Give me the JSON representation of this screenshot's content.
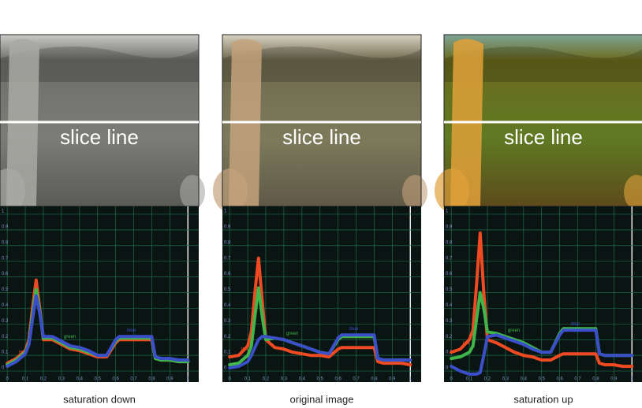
{
  "chart_data": [
    {
      "type": "line",
      "title": "saturation down",
      "annotation": "slice line",
      "grid": true,
      "xlim": [
        -0.04,
        1.06
      ],
      "ylim": [
        -0.07,
        1.05
      ],
      "xticks": [
        0,
        0.1,
        0.2,
        0.3,
        0.4,
        0.5,
        0.6,
        0.7,
        0.8,
        0.9,
        1
      ],
      "yticks": [
        0,
        0.1,
        0.2,
        0.3,
        0.4,
        0.5,
        0.6,
        0.7,
        0.8,
        0.9,
        1
      ],
      "x": [
        0,
        0.05,
        0.1,
        0.12,
        0.14,
        0.16,
        0.18,
        0.2,
        0.25,
        0.3,
        0.35,
        0.4,
        0.45,
        0.5,
        0.55,
        0.6,
        0.62,
        0.65,
        0.7,
        0.75,
        0.8,
        0.82,
        0.85,
        0.9,
        0.95,
        1.0
      ],
      "series": [
        {
          "name": "red",
          "color": "#f04a23",
          "values": [
            0.05,
            0.08,
            0.13,
            0.2,
            0.4,
            0.58,
            0.4,
            0.2,
            0.2,
            0.17,
            0.14,
            0.13,
            0.11,
            0.09,
            0.09,
            0.18,
            0.2,
            0.2,
            0.2,
            0.2,
            0.2,
            0.08,
            0.07,
            0.07,
            0.06,
            0.06
          ]
        },
        {
          "name": "green",
          "color": "#3fb54a",
          "values": [
            0.04,
            0.07,
            0.12,
            0.18,
            0.36,
            0.52,
            0.38,
            0.21,
            0.21,
            0.18,
            0.15,
            0.14,
            0.12,
            0.1,
            0.1,
            0.19,
            0.21,
            0.21,
            0.21,
            0.21,
            0.21,
            0.08,
            0.07,
            0.07,
            0.06,
            0.06
          ]
        },
        {
          "name": "blue",
          "color": "#3a4fc9",
          "values": [
            0.03,
            0.06,
            0.11,
            0.17,
            0.33,
            0.48,
            0.37,
            0.22,
            0.22,
            0.19,
            0.16,
            0.15,
            0.13,
            0.1,
            0.1,
            0.2,
            0.22,
            0.22,
            0.22,
            0.22,
            0.22,
            0.09,
            0.08,
            0.08,
            0.07,
            0.07
          ]
        }
      ]
    },
    {
      "type": "line",
      "title": "original image",
      "annotation": "slice line",
      "grid": true,
      "xlim": [
        -0.04,
        1.06
      ],
      "ylim": [
        -0.07,
        1.05
      ],
      "xticks": [
        0,
        0.1,
        0.2,
        0.3,
        0.4,
        0.5,
        0.6,
        0.7,
        0.8,
        0.9,
        1
      ],
      "yticks": [
        0,
        0.1,
        0.2,
        0.3,
        0.4,
        0.5,
        0.6,
        0.7,
        0.8,
        0.9,
        1
      ],
      "x": [
        0,
        0.05,
        0.1,
        0.12,
        0.14,
        0.16,
        0.18,
        0.2,
        0.25,
        0.3,
        0.35,
        0.4,
        0.45,
        0.5,
        0.55,
        0.6,
        0.62,
        0.65,
        0.7,
        0.75,
        0.8,
        0.82,
        0.85,
        0.9,
        0.95,
        1.0
      ],
      "series": [
        {
          "name": "red",
          "color": "#f04a23",
          "values": [
            0.09,
            0.1,
            0.16,
            0.25,
            0.5,
            0.72,
            0.45,
            0.2,
            0.15,
            0.14,
            0.12,
            0.11,
            0.1,
            0.1,
            0.09,
            0.14,
            0.15,
            0.15,
            0.15,
            0.15,
            0.15,
            0.06,
            0.05,
            0.05,
            0.05,
            0.04
          ]
        },
        {
          "name": "green",
          "color": "#3fb54a",
          "values": [
            0.04,
            0.05,
            0.1,
            0.16,
            0.35,
            0.53,
            0.35,
            0.2,
            0.21,
            0.2,
            0.18,
            0.16,
            0.14,
            0.12,
            0.11,
            0.2,
            0.22,
            0.22,
            0.22,
            0.22,
            0.22,
            0.08,
            0.07,
            0.07,
            0.07,
            0.07
          ]
        },
        {
          "name": "blue",
          "color": "#3a4fc9",
          "values": [
            0.02,
            0.03,
            0.06,
            0.1,
            0.15,
            0.2,
            0.22,
            0.22,
            0.21,
            0.2,
            0.18,
            0.16,
            0.14,
            0.12,
            0.11,
            0.21,
            0.23,
            0.23,
            0.23,
            0.23,
            0.23,
            0.08,
            0.07,
            0.07,
            0.07,
            0.07
          ]
        }
      ]
    },
    {
      "type": "line",
      "title": "saturation up",
      "annotation": "slice line",
      "grid": true,
      "xlim": [
        -0.04,
        1.06
      ],
      "ylim": [
        -0.07,
        1.05
      ],
      "xticks": [
        0,
        0.1,
        0.2,
        0.3,
        0.4,
        0.5,
        0.6,
        0.7,
        0.8,
        0.9,
        1
      ],
      "yticks": [
        0,
        0.1,
        0.2,
        0.3,
        0.4,
        0.5,
        0.6,
        0.7,
        0.8,
        0.9,
        1
      ],
      "x": [
        0,
        0.05,
        0.1,
        0.12,
        0.14,
        0.16,
        0.18,
        0.2,
        0.25,
        0.3,
        0.35,
        0.4,
        0.45,
        0.5,
        0.55,
        0.6,
        0.62,
        0.65,
        0.7,
        0.75,
        0.8,
        0.82,
        0.85,
        0.9,
        0.95,
        1.0
      ],
      "series": [
        {
          "name": "red",
          "color": "#f04a23",
          "values": [
            0.12,
            0.14,
            0.2,
            0.26,
            0.55,
            0.88,
            0.5,
            0.2,
            0.18,
            0.15,
            0.12,
            0.1,
            0.09,
            0.07,
            0.07,
            0.1,
            0.11,
            0.11,
            0.11,
            0.11,
            0.11,
            0.05,
            0.04,
            0.04,
            0.03,
            0.03
          ]
        },
        {
          "name": "green",
          "color": "#3fb54a",
          "values": [
            0.08,
            0.09,
            0.12,
            0.16,
            0.33,
            0.5,
            0.4,
            0.25,
            0.24,
            0.22,
            0.2,
            0.18,
            0.15,
            0.12,
            0.12,
            0.24,
            0.27,
            0.27,
            0.27,
            0.27,
            0.27,
            0.11,
            0.1,
            0.1,
            0.1,
            0.1
          ]
        },
        {
          "name": "blue",
          "color": "#3a4fc9",
          "values": [
            0.03,
            0.0,
            -0.02,
            -0.02,
            -0.02,
            -0.01,
            0.1,
            0.22,
            0.23,
            0.21,
            0.19,
            0.17,
            0.14,
            0.12,
            0.12,
            0.23,
            0.26,
            0.26,
            0.26,
            0.26,
            0.26,
            0.11,
            0.1,
            0.1,
            0.1,
            0.1
          ]
        }
      ]
    }
  ]
}
